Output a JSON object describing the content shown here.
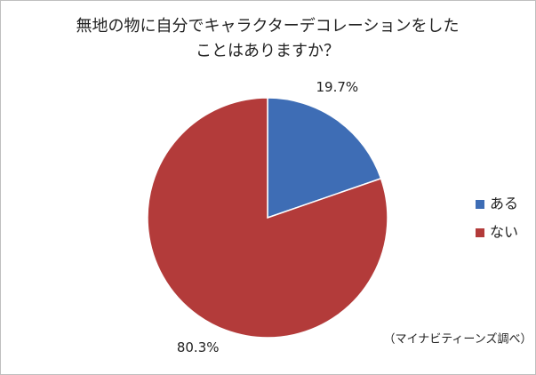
{
  "chart_data": {
    "type": "pie",
    "title": [
      "無地の物に自分でキャラクターデコレーションをした",
      "ことはありますか？"
    ],
    "categories": [
      "ある",
      "ない"
    ],
    "values": [
      19.7,
      80.3
    ],
    "value_labels": [
      "19.7%",
      "80.3%"
    ],
    "colors": [
      "#3e6db5",
      "#b33b3a"
    ],
    "legend": "right",
    "annotation": "（マイナビティーンズ調べ）"
  }
}
